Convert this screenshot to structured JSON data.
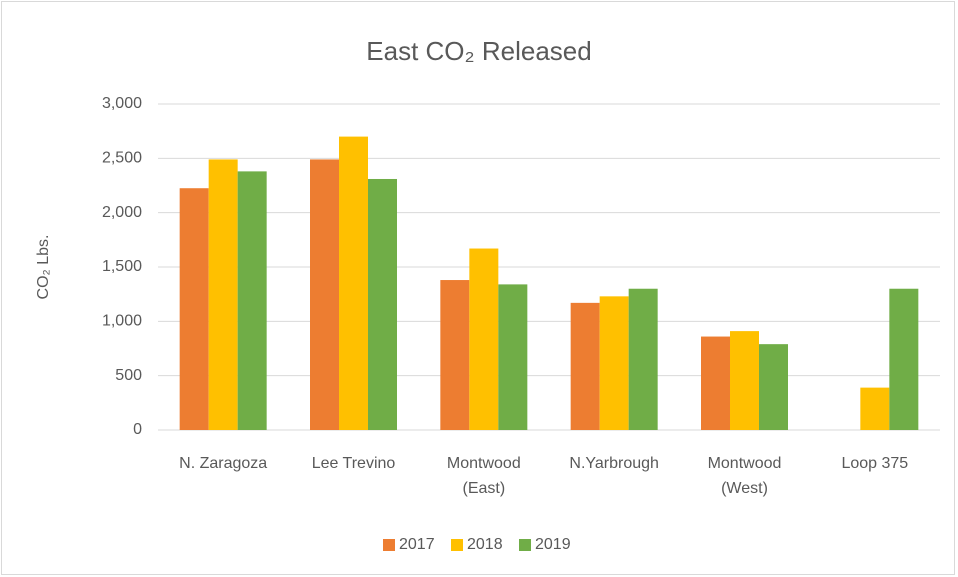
{
  "chart_data": {
    "type": "bar",
    "title": "East CO₂ Released",
    "y_axis_label": "CO₂ Lbs.",
    "categories": [
      "N. Zaragoza",
      "Lee Trevino",
      "Montwood (East)",
      "N.Yarbrough",
      "Montwood (West)",
      "Loop 375"
    ],
    "series": [
      {
        "name": "2017",
        "color": "#ed7d31",
        "values": [
          2225,
          2490,
          1380,
          1170,
          860,
          null
        ]
      },
      {
        "name": "2018",
        "color": "#ffc000",
        "values": [
          2490,
          2700,
          1670,
          1230,
          910,
          390
        ]
      },
      {
        "name": "2019",
        "color": "#70ad47",
        "values": [
          2380,
          2310,
          1340,
          1300,
          790,
          1300
        ]
      }
    ],
    "ylim": [
      0,
      3000
    ],
    "yticks": [
      0,
      500,
      {
        "value": 1000,
        "label": "1,000"
      },
      {
        "value": 1500,
        "label": "1,500"
      },
      {
        "value": 2000,
        "label": "2,000"
      },
      {
        "value": 2500,
        "label": "2,500"
      },
      {
        "value": 3000,
        "label": "3,000"
      }
    ],
    "grid": true,
    "legend": "bottom"
  }
}
